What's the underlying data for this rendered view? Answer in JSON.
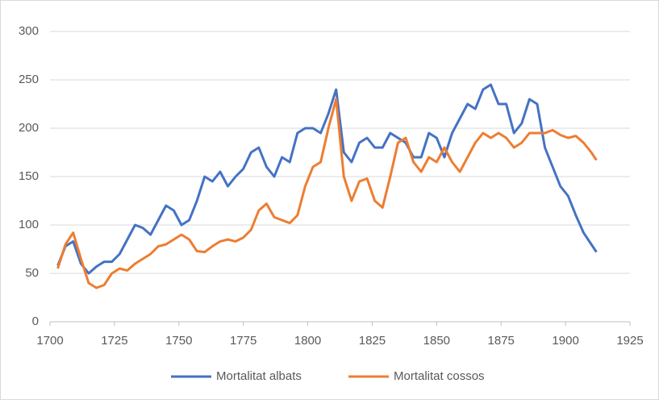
{
  "chart_data": {
    "type": "line",
    "x": [
      1703,
      1706,
      1709,
      1712,
      1715,
      1718,
      1721,
      1724,
      1727,
      1730,
      1733,
      1736,
      1739,
      1742,
      1745,
      1748,
      1751,
      1754,
      1757,
      1760,
      1763,
      1766,
      1769,
      1772,
      1775,
      1778,
      1781,
      1784,
      1787,
      1790,
      1793,
      1796,
      1799,
      1802,
      1805,
      1808,
      1811,
      1814,
      1817,
      1820,
      1823,
      1826,
      1829,
      1832,
      1835,
      1838,
      1841,
      1844,
      1847,
      1850,
      1853,
      1856,
      1859,
      1862,
      1865,
      1868,
      1871,
      1874,
      1877,
      1880,
      1883,
      1886,
      1889,
      1892,
      1895,
      1898,
      1901,
      1904,
      1907,
      1910,
      1912
    ],
    "series": [
      {
        "name": "Mortalitat albats",
        "color": "#4472c4",
        "values": [
          58,
          78,
          83,
          60,
          50,
          57,
          62,
          62,
          70,
          85,
          100,
          97,
          90,
          105,
          120,
          115,
          100,
          105,
          125,
          150,
          145,
          155,
          140,
          150,
          158,
          175,
          180,
          160,
          150,
          170,
          165,
          195,
          200,
          200,
          195,
          215,
          240,
          175,
          165,
          185,
          190,
          180,
          180,
          195,
          190,
          185,
          170,
          170,
          195,
          190,
          170,
          195,
          210,
          225,
          220,
          240,
          245,
          225,
          225,
          195,
          205,
          230,
          225,
          180,
          160,
          140,
          130,
          110,
          92,
          80,
          72
        ]
      },
      {
        "name": "Mortalitat cossos",
        "color": "#ed7d31",
        "values": [
          55,
          80,
          92,
          65,
          40,
          35,
          38,
          50,
          55,
          53,
          60,
          65,
          70,
          78,
          80,
          85,
          90,
          85,
          73,
          72,
          78,
          83,
          85,
          83,
          87,
          95,
          115,
          122,
          108,
          105,
          102,
          110,
          140,
          160,
          165,
          200,
          230,
          150,
          125,
          145,
          148,
          125,
          118,
          150,
          185,
          190,
          165,
          155,
          170,
          165,
          180,
          165,
          155,
          170,
          185,
          195,
          190,
          195,
          190,
          180,
          185,
          195,
          195,
          195,
          198,
          193,
          190,
          192,
          185,
          175,
          167
        ]
      }
    ],
    "xlim": [
      1700,
      1925
    ],
    "xticks": [
      1700,
      1725,
      1750,
      1775,
      1800,
      1825,
      1850,
      1875,
      1900,
      1925
    ],
    "ylim": [
      0,
      300
    ],
    "yticks": [
      0,
      50,
      100,
      150,
      200,
      250,
      300
    ],
    "grid": true,
    "legend": "bottom"
  }
}
